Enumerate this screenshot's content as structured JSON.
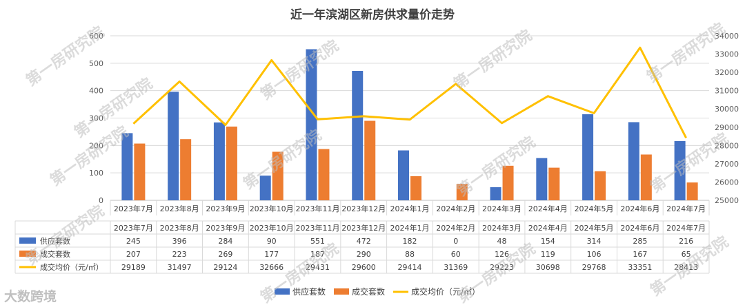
{
  "chart_data": {
    "type": "bar",
    "title": "近一年滨湖区新房供求量价走势",
    "categories": [
      "2023年7月",
      "2023年8月",
      "2023年9月",
      "2023年10月",
      "2023年11月",
      "2023年12月",
      "2024年1月",
      "2024年2月",
      "2024年3月",
      "2024年4月",
      "2024年5月",
      "2024年6月",
      "2024年7月"
    ],
    "series": [
      {
        "name": "供应套数",
        "type": "bar",
        "axis": "left",
        "color": "#4472C4",
        "values": [
          245,
          396,
          284,
          90,
          551,
          472,
          182,
          0,
          48,
          154,
          314,
          285,
          216
        ]
      },
      {
        "name": "成交套数",
        "type": "bar",
        "axis": "left",
        "color": "#ED7D31",
        "values": [
          207,
          223,
          269,
          177,
          187,
          290,
          88,
          60,
          126,
          119,
          106,
          167,
          65
        ]
      },
      {
        "name": "成交均价（元/㎡）",
        "legend_name": "成交均价（元/㎡）",
        "type": "line",
        "axis": "right",
        "color": "#FFC000",
        "values": [
          29189,
          31497,
          29124,
          32666,
          29431,
          29600,
          29414,
          31369,
          29223,
          30698,
          29768,
          33351,
          28413
        ]
      }
    ],
    "y_left": {
      "min": 0,
      "max": 600,
      "ticks": [
        0,
        100,
        200,
        300,
        400,
        500,
        600
      ]
    },
    "y_right": {
      "min": 25000,
      "max": 34000,
      "ticks": [
        25000,
        26000,
        27000,
        28000,
        29000,
        30000,
        31000,
        32000,
        33000,
        34000
      ]
    },
    "grid": true,
    "legend_position": "bottom",
    "data_table": true
  },
  "watermark": "第一房研究院",
  "logo": "大数跨境"
}
